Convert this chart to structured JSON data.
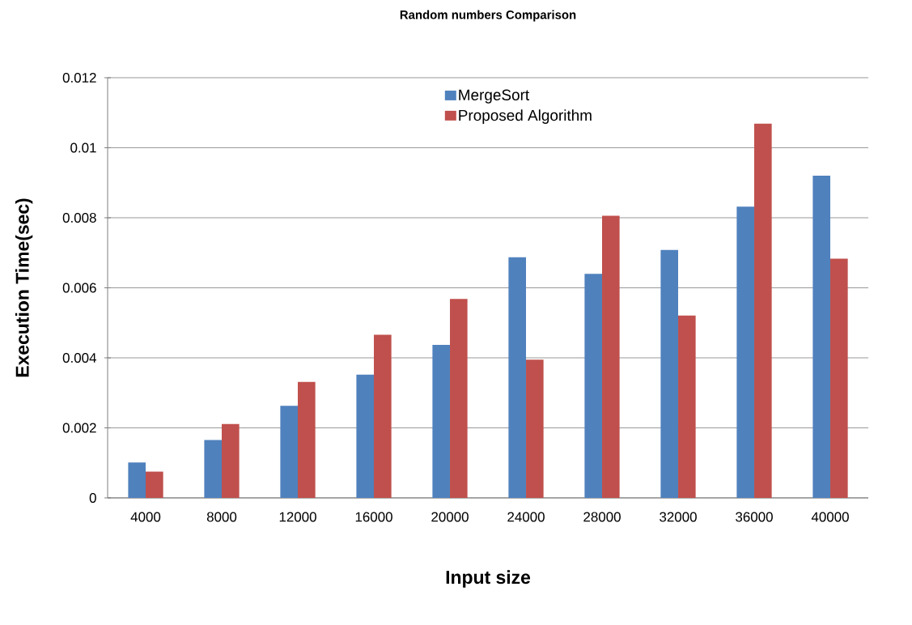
{
  "chart_data": {
    "type": "bar",
    "title": "Random numbers Comparison",
    "xlabel": "Input size",
    "ylabel": "Execution Time(sec)",
    "categories": [
      "4000",
      "8000",
      "12000",
      "16000",
      "20000",
      "24000",
      "28000",
      "32000",
      "36000",
      "40000"
    ],
    "series": [
      {
        "name": "MergeSort",
        "color": "#4f81bd",
        "values": [
          0.00101,
          0.00165,
          0.00263,
          0.00352,
          0.00437,
          0.00687,
          0.0064,
          0.00708,
          0.00832,
          0.0092
        ]
      },
      {
        "name": "Proposed Algorithm",
        "color": "#c0504d",
        "values": [
          0.00075,
          0.00211,
          0.00331,
          0.00466,
          0.00568,
          0.00395,
          0.00806,
          0.00521,
          0.01069,
          0.00683
        ]
      }
    ],
    "ylim": [
      0,
      0.012
    ],
    "yticks": [
      0,
      0.002,
      0.004,
      0.006,
      0.008,
      0.01,
      0.012
    ],
    "grid": "y",
    "legend": "top"
  }
}
